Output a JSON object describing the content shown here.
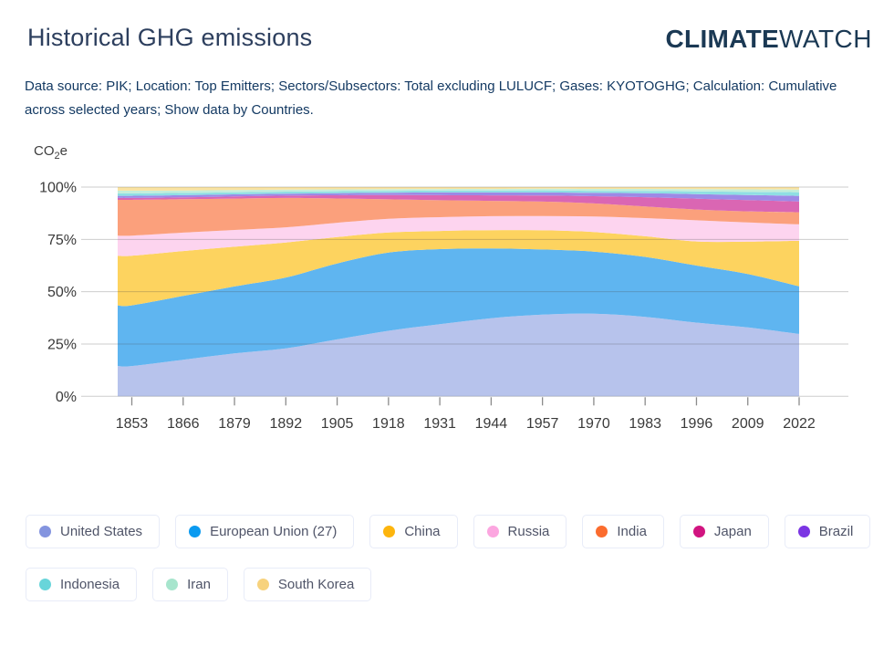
{
  "header": {
    "title": "Historical GHG emissions",
    "logo_bold": "CLIMATE",
    "logo_light": "WATCH",
    "subtitle_line1": "Data source: PIK; Location: Top Emitters; Sectors/Subsectors: Total excluding LULUCF; Gases: KYOTOGHG; Calculation: Cumulative",
    "subtitle_line2": "across selected years; Show data by Countries."
  },
  "colors": {
    "title_text": "#2d3f5e",
    "subtitle_text": "#143a63",
    "logo_text": "#1b3954",
    "axis_text": "#3a3a3a",
    "grid_line": "#cccccc",
    "axis_line": "#999999",
    "legend_text": "#4f5468",
    "legend_border": "#e8ecf8"
  },
  "chart_data": {
    "type": "area",
    "stacked": true,
    "normalized": "percent",
    "title": "Historical GHG emissions",
    "unit": {
      "pre": "CO",
      "sub": "2",
      "post": "e"
    },
    "x": [
      1853,
      1866,
      1879,
      1892,
      1905,
      1918,
      1931,
      1944,
      1957,
      1970,
      1983,
      1996,
      2009,
      2022
    ],
    "y_ticks": [
      "0%",
      "25%",
      "50%",
      "75%",
      "100%"
    ],
    "ylim": [
      0,
      100
    ],
    "grid": true,
    "legend_position": "bottom",
    "series": [
      {
        "name": "United States",
        "dot": "#8494df",
        "fill": "#b7c3ec",
        "values": [
          14.5,
          17.5,
          20.5,
          23.0,
          27.0,
          31.0,
          34.5,
          37.5,
          39.5,
          40.0,
          38.5,
          35.5,
          33.0,
          30.0
        ]
      },
      {
        "name": "European Union (27)",
        "dot": "#0a9af0",
        "fill": "#5fb5f0",
        "values": [
          29.0,
          30.5,
          32.0,
          34.0,
          36.0,
          37.0,
          36.0,
          33.5,
          31.5,
          30.0,
          29.0,
          27.5,
          25.5,
          22.8
        ]
      },
      {
        "name": "China",
        "dot": "#fdb50d",
        "fill": "#fdd35f",
        "values": [
          23.7,
          21.5,
          19.0,
          16.8,
          12.5,
          9.5,
          8.7,
          8.8,
          9.3,
          9.5,
          10.0,
          11.6,
          15.5,
          21.9
        ]
      },
      {
        "name": "Russia",
        "dot": "#fca6e0",
        "fill": "#fdd4ef",
        "values": [
          9.6,
          8.8,
          8.0,
          7.3,
          6.8,
          6.5,
          6.6,
          6.7,
          6.9,
          7.5,
          8.8,
          10.2,
          9.2,
          7.9
        ]
      },
      {
        "name": "India",
        "dot": "#fb6c2e",
        "fill": "#fba07c",
        "values": [
          17.1,
          16.0,
          15.0,
          14.1,
          11.5,
          9.2,
          8.1,
          7.4,
          7.0,
          6.3,
          5.6,
          5.2,
          5.3,
          5.8
        ]
      },
      {
        "name": "Japan",
        "dot": "#d11480",
        "fill": "#da66b3",
        "values": [
          0.9,
          0.9,
          1.0,
          1.1,
          1.5,
          2.0,
          2.4,
          2.6,
          2.9,
          3.5,
          4.5,
          5.2,
          5.4,
          5.2
        ]
      },
      {
        "name": "Brazil",
        "dot": "#7b35e3",
        "fill": "#9d89e6",
        "values": [
          1.0,
          1.0,
          1.0,
          0.9,
          1.0,
          1.1,
          1.3,
          1.4,
          1.5,
          1.6,
          1.9,
          2.2,
          2.4,
          2.7
        ]
      },
      {
        "name": "Indonesia",
        "dot": "#68d5da",
        "fill": "#8fdfe3",
        "values": [
          1.2,
          1.1,
          1.0,
          1.0,
          0.9,
          0.9,
          0.9,
          0.9,
          1.0,
          1.0,
          1.1,
          1.3,
          1.5,
          1.7
        ]
      },
      {
        "name": "Iran",
        "dot": "#a7e5cd",
        "fill": "#c3eeda",
        "values": [
          1.3,
          1.2,
          1.1,
          1.0,
          0.9,
          0.8,
          0.8,
          0.8,
          0.8,
          0.9,
          1.0,
          1.1,
          1.2,
          1.3
        ]
      },
      {
        "name": "South Korea",
        "dot": "#f7d27d",
        "fill": "#f9e2a1",
        "values": [
          1.7,
          1.6,
          1.4,
          1.2,
          1.1,
          1.0,
          0.9,
          0.9,
          0.8,
          0.9,
          0.9,
          1.0,
          1.1,
          1.2
        ]
      }
    ]
  }
}
